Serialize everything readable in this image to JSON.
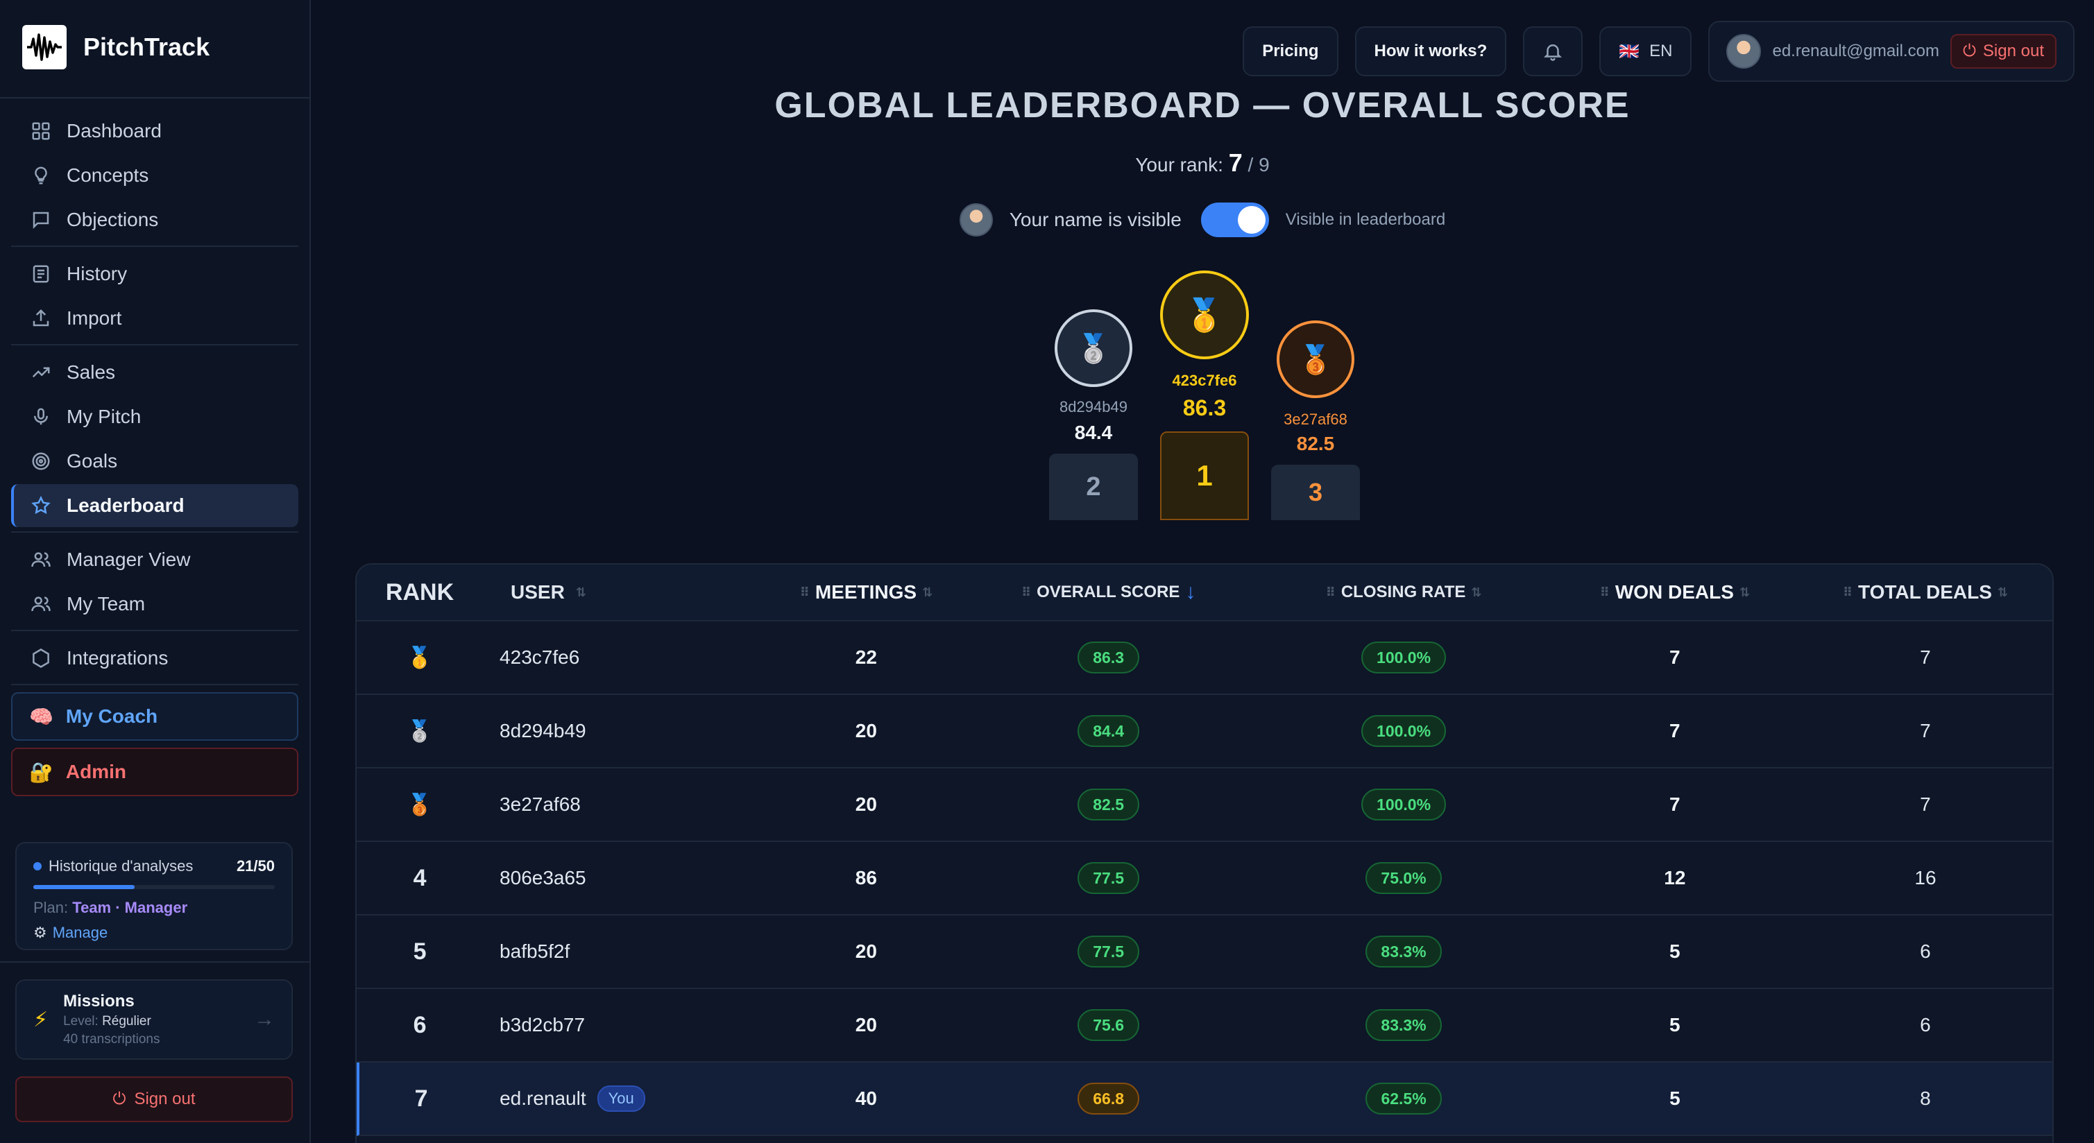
{
  "app": {
    "name": "PitchTrack"
  },
  "nav": {
    "group1": [
      {
        "label": "Dashboard",
        "icon": "grid-icon"
      },
      {
        "label": "Concepts",
        "icon": "lightbulb-icon"
      },
      {
        "label": "Objections",
        "icon": "message-icon"
      }
    ],
    "group2": [
      {
        "label": "History",
        "icon": "history-icon"
      },
      {
        "label": "Import",
        "icon": "upload-icon"
      }
    ],
    "group3": [
      {
        "label": "Sales",
        "icon": "trend-icon"
      },
      {
        "label": "My Pitch",
        "icon": "mic-icon"
      },
      {
        "label": "Goals",
        "icon": "target-icon"
      },
      {
        "label": "Leaderboard",
        "icon": "star-icon"
      }
    ],
    "group4": [
      {
        "label": "Manager View",
        "icon": "users-icon"
      },
      {
        "label": "My Team",
        "icon": "team-icon"
      }
    ],
    "group5": [
      {
        "label": "Integrations",
        "icon": "hexagon-icon"
      }
    ],
    "coach": {
      "label": "My Coach",
      "icon": "🧠"
    },
    "admin": {
      "label": "Admin",
      "icon": "🔐"
    }
  },
  "usage": {
    "title": "Historique d'analyses",
    "count": "21/50",
    "fraction": 0.42,
    "plan_prefix": "Plan:",
    "plan": "Team · Manager",
    "manage": "Manage"
  },
  "missions": {
    "title": "Missions",
    "level_prefix": "Level:",
    "level": "Régulier",
    "sub": "40 transcriptions"
  },
  "sidebar_signout": "Sign out",
  "topbar": {
    "pricing": "Pricing",
    "how": "How it works?",
    "lang_flag": "🇬🇧",
    "lang": "EN",
    "email": "ed.renault@gmail.com",
    "signout": "Sign out"
  },
  "header": {
    "title": "GLOBAL LEADERBOARD — OVERALL SCORE",
    "rank_prefix": "Your rank:",
    "rank": "7",
    "rank_total": "/ 9",
    "visible_label": "Your name is visible",
    "visible_note": "Visible in leaderboard",
    "visible_on": true
  },
  "podium": {
    "first": {
      "user": "423c7fe6",
      "score": "86.3",
      "place": "1",
      "medal": "🥇"
    },
    "second": {
      "user": "8d294b49",
      "score": "84.4",
      "place": "2",
      "medal": "🥈"
    },
    "third": {
      "user": "3e27af68",
      "score": "82.5",
      "place": "3",
      "medal": "🥉"
    }
  },
  "table": {
    "headers": {
      "rank": "RANK",
      "user": "USER",
      "meetings": "MEETINGS",
      "score": "OVERALL SCORE",
      "closing": "CLOSING RATE",
      "won": "WON DEALS",
      "total": "TOTAL DEALS"
    },
    "you_label": "You",
    "rows": [
      {
        "rank": "🥇",
        "user": "423c7fe6",
        "meetings": "22",
        "score": "86.3",
        "closing": "100.0%",
        "won": "7",
        "total": "7"
      },
      {
        "rank": "🥈",
        "user": "8d294b49",
        "meetings": "20",
        "score": "84.4",
        "closing": "100.0%",
        "won": "7",
        "total": "7"
      },
      {
        "rank": "🥉",
        "user": "3e27af68",
        "meetings": "20",
        "score": "82.5",
        "closing": "100.0%",
        "won": "7",
        "total": "7"
      },
      {
        "rank": "4",
        "user": "806e3a65",
        "meetings": "86",
        "score": "77.5",
        "closing": "75.0%",
        "won": "12",
        "total": "16"
      },
      {
        "rank": "5",
        "user": "bafb5f2f",
        "meetings": "20",
        "score": "77.5",
        "closing": "83.3%",
        "won": "5",
        "total": "6"
      },
      {
        "rank": "6",
        "user": "b3d2cb77",
        "meetings": "20",
        "score": "75.6",
        "closing": "83.3%",
        "won": "5",
        "total": "6"
      },
      {
        "rank": "7",
        "user": "ed.renault",
        "meetings": "40",
        "score": "66.8",
        "closing": "62.5%",
        "won": "5",
        "total": "8"
      }
    ]
  },
  "colors": {
    "accent": "#3b82f6",
    "gold": "#facc15",
    "silver": "#cbd5e1",
    "bronze": "#fb923c",
    "green": "#4ade80",
    "danger": "#f87171"
  }
}
